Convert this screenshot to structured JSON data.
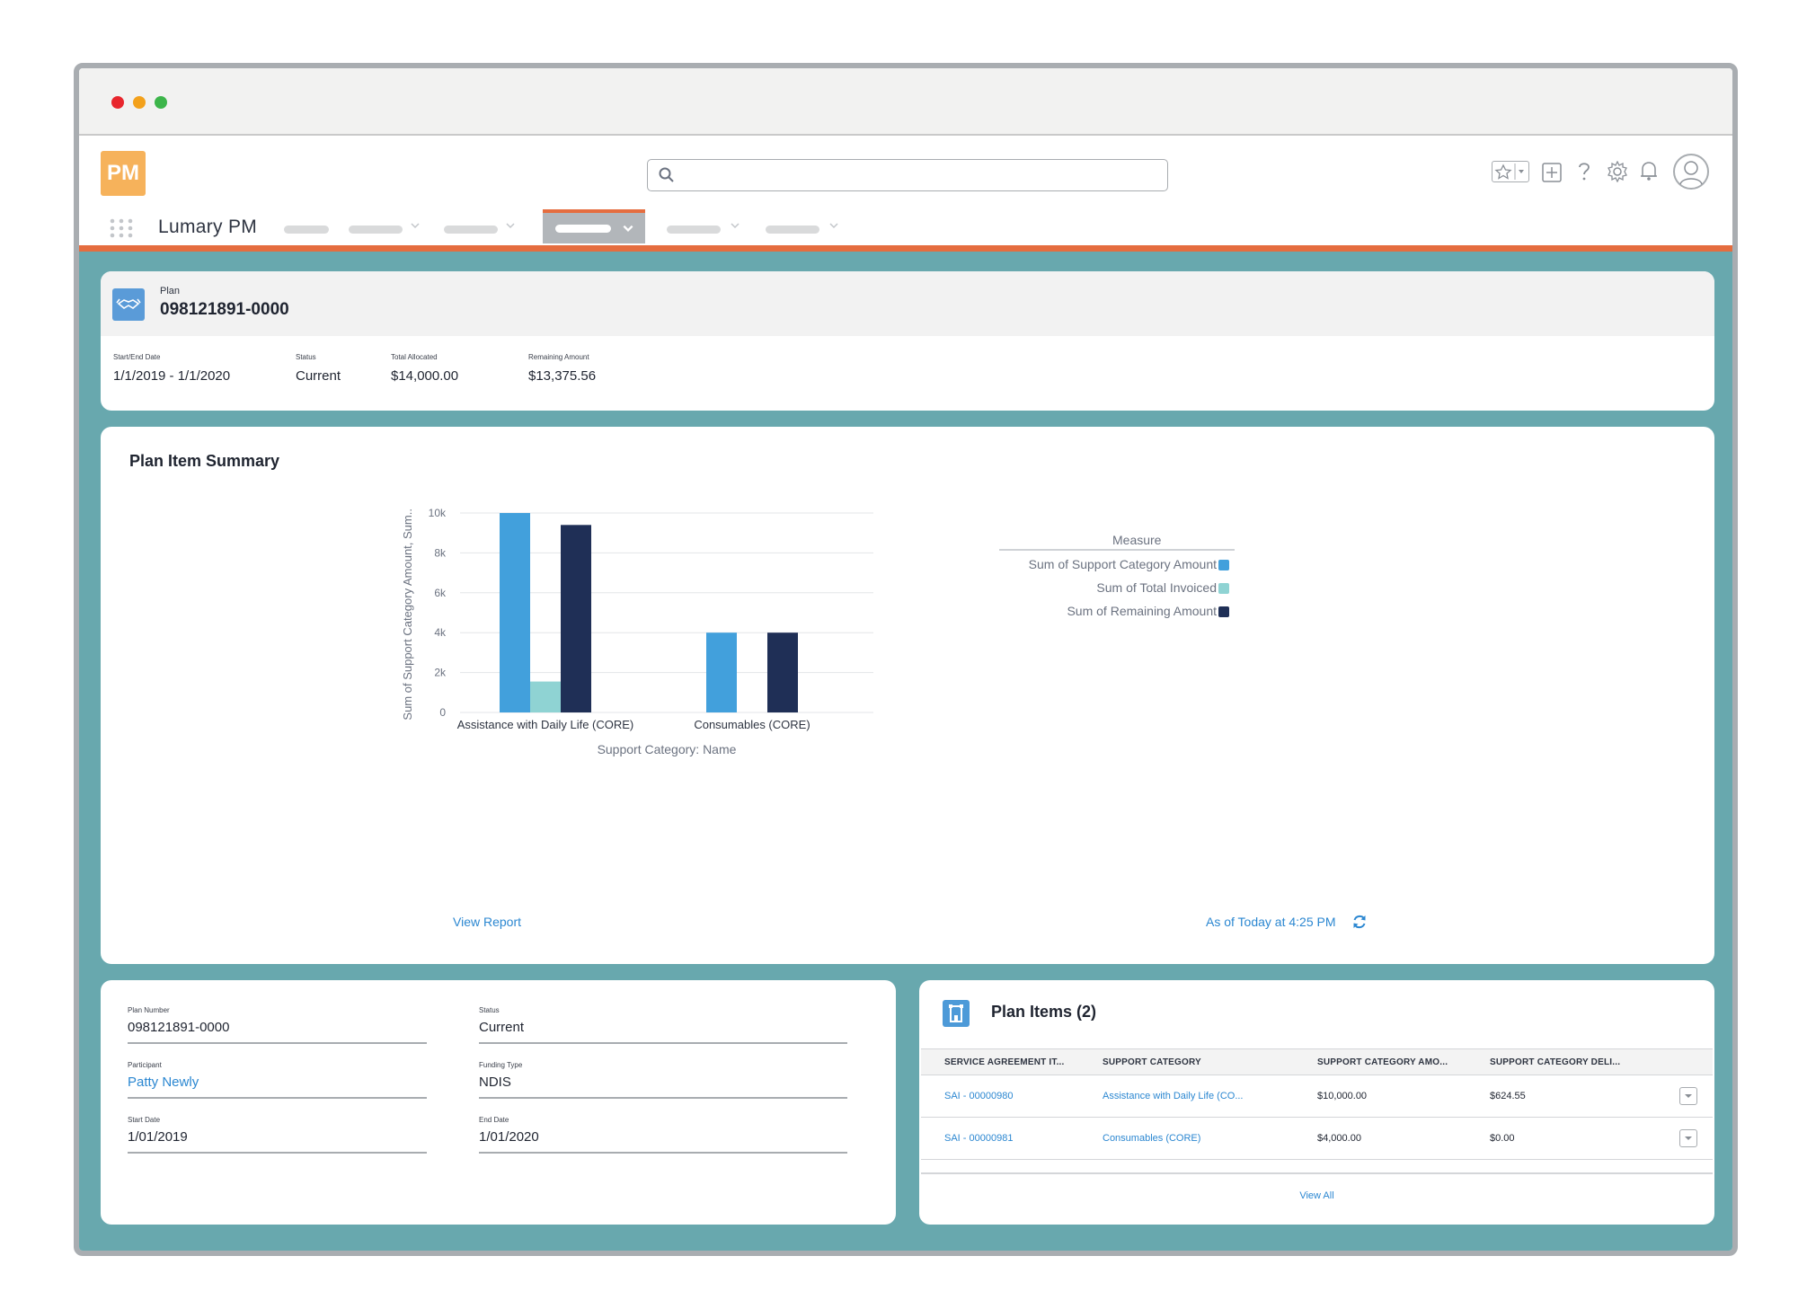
{
  "app": {
    "logo_text": "PM",
    "name": "Lumary PM",
    "search": {
      "placeholder": ""
    }
  },
  "record": {
    "type_label": "Plan",
    "title": "098121891-0000",
    "highlights": [
      {
        "label": "Start/End Date",
        "value": "1/1/2019 - 1/1/2020"
      },
      {
        "label": "Status",
        "value": "Current"
      },
      {
        "label": "Total Allocated",
        "value": "$14,000.00"
      },
      {
        "label": "Remaining Amount",
        "value": "$13,375.56"
      }
    ]
  },
  "summary": {
    "title": "Plan Item Summary",
    "view_report": "View Report",
    "as_of": "As of Today at 4:25 PM"
  },
  "chart_data": {
    "type": "bar",
    "categories": [
      "Assistance with Daily Life (CORE)",
      "Consumables (CORE)"
    ],
    "series": [
      {
        "name": "Sum of Support Category Amount",
        "values": [
          10000,
          4000
        ],
        "color": "#42a0dc"
      },
      {
        "name": "Sum of Total Invoiced",
        "values": [
          1550,
          0
        ],
        "color": "#8fd3d3"
      },
      {
        "name": "Sum of Remaining Amount",
        "values": [
          9400,
          4000
        ],
        "color": "#1f2f56"
      }
    ],
    "xlabel": "Support Category: Name",
    "ylabel": "Sum of Support Category Amount, Sum...",
    "ylim": [
      0,
      10000
    ],
    "yticks": [
      "0",
      "2k",
      "4k",
      "6k",
      "8k",
      "10k"
    ],
    "legend_title": "Measure",
    "legend_position": "top-right",
    "grid": true
  },
  "details": {
    "plan_number": {
      "label": "Plan Number",
      "value": "098121891-0000"
    },
    "status": {
      "label": "Status",
      "value": "Current"
    },
    "participant": {
      "label": "Participant",
      "value": "Patty Newly"
    },
    "funding_type": {
      "label": "Funding Type",
      "value": "NDIS"
    },
    "start_date": {
      "label": "Start Date",
      "value": "1/01/2019"
    },
    "end_date": {
      "label": "End Date",
      "value": "1/01/2020"
    }
  },
  "plan_items": {
    "title": "Plan Items (2)",
    "columns": [
      "SERVICE AGREEMENT IT...",
      "SUPPORT CATEGORY",
      "SUPPORT CATEGORY AMO...",
      "SUPPORT CATEGORY DELI..."
    ],
    "rows": [
      [
        "SAI - 00000980",
        "Assistance with Daily Life (CO...",
        "$10,000.00",
        "$624.55"
      ],
      [
        "SAI - 00000981",
        "Consumables (CORE)",
        "$4,000.00",
        "$0.00"
      ]
    ],
    "view_all": "View All"
  },
  "colors": {
    "accent": "#e56d3f",
    "background": "#68a8ae",
    "link": "#2b87d1",
    "logo": "#f6b25b"
  },
  "icons": [
    "search-icon",
    "favorites-icon",
    "add-icon",
    "help-icon",
    "settings-icon",
    "notifications-icon",
    "avatar-icon",
    "app-launcher-icon",
    "plan-icon",
    "refresh-icon",
    "plan-items-icon",
    "row-menu-icon"
  ]
}
